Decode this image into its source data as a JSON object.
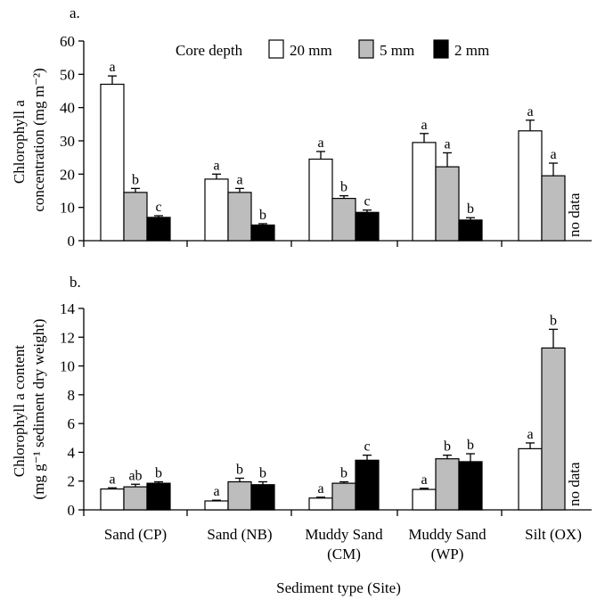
{
  "xlabel": "Sediment type (Site)",
  "categories": [
    [
      "Sand (CP)"
    ],
    [
      "Sand (NB)"
    ],
    [
      "Muddy  Sand",
      "(CM)"
    ],
    [
      "Muddy  Sand",
      "(WP)"
    ],
    [
      "Silt (OX)"
    ]
  ],
  "colors": {
    "20 mm": "#ffffff",
    "5 mm": "#bdbdbd",
    "2 mm": "#000000",
    "axis": "#000000"
  },
  "legend": {
    "title": "Core depth",
    "entries": [
      "20 mm",
      "5 mm",
      "2 mm"
    ]
  },
  "chart_data": [
    {
      "type": "bar",
      "panel": "a.",
      "ylabel_lines": [
        "Chlorophyll a",
        "concentration (mg m⁻²)"
      ],
      "ylim": [
        0,
        60
      ],
      "yticks": [
        0,
        10,
        20,
        30,
        40,
        50,
        60
      ],
      "series": [
        {
          "name": "20 mm",
          "values": [
            47,
            18.5,
            24.5,
            29.5,
            33
          ],
          "errors": [
            2.5,
            1.5,
            2.3,
            2.7,
            3.2
          ],
          "labels": [
            "a",
            "a",
            "a",
            "a",
            "a"
          ]
        },
        {
          "name": "5 mm",
          "values": [
            14.5,
            14.5,
            12.7,
            22.2,
            19.5
          ],
          "errors": [
            1.2,
            1.2,
            0.8,
            4.2,
            3.8
          ],
          "labels": [
            "b",
            "a",
            "b",
            "a",
            "a"
          ]
        },
        {
          "name": "2 mm",
          "values": [
            7,
            4.7,
            8.5,
            6.2,
            null
          ],
          "errors": [
            0.5,
            0.4,
            0.7,
            0.7,
            null
          ],
          "labels": [
            "c",
            "b",
            "c",
            "b",
            null
          ]
        }
      ],
      "annotations": [
        "no data"
      ]
    },
    {
      "type": "bar",
      "panel": "b.",
      "ylabel_lines": [
        "Chlorophyll a content",
        "(mg g⁻¹ sediment dry weight)"
      ],
      "ylim": [
        0,
        14
      ],
      "yticks": [
        0,
        2,
        4,
        6,
        8,
        10,
        12,
        14
      ],
      "series": [
        {
          "name": "20 mm",
          "values": [
            1.45,
            0.62,
            0.82,
            1.42,
            4.25
          ],
          "errors": [
            0.08,
            0.05,
            0.06,
            0.08,
            0.4
          ],
          "labels": [
            "a",
            "a",
            "a",
            "a",
            "a"
          ]
        },
        {
          "name": "5 mm",
          "values": [
            1.6,
            1.95,
            1.85,
            3.55,
            11.25
          ],
          "errors": [
            0.18,
            0.25,
            0.1,
            0.25,
            1.3
          ],
          "labels": [
            "ab",
            "b",
            "b",
            "b",
            "b"
          ]
        },
        {
          "name": "2 mm",
          "values": [
            1.85,
            1.75,
            3.45,
            3.35,
            null
          ],
          "errors": [
            0.1,
            0.2,
            0.35,
            0.55,
            null
          ],
          "labels": [
            "b",
            "b",
            "c",
            "b",
            null
          ]
        }
      ],
      "annotations": [
        "no data"
      ]
    }
  ]
}
